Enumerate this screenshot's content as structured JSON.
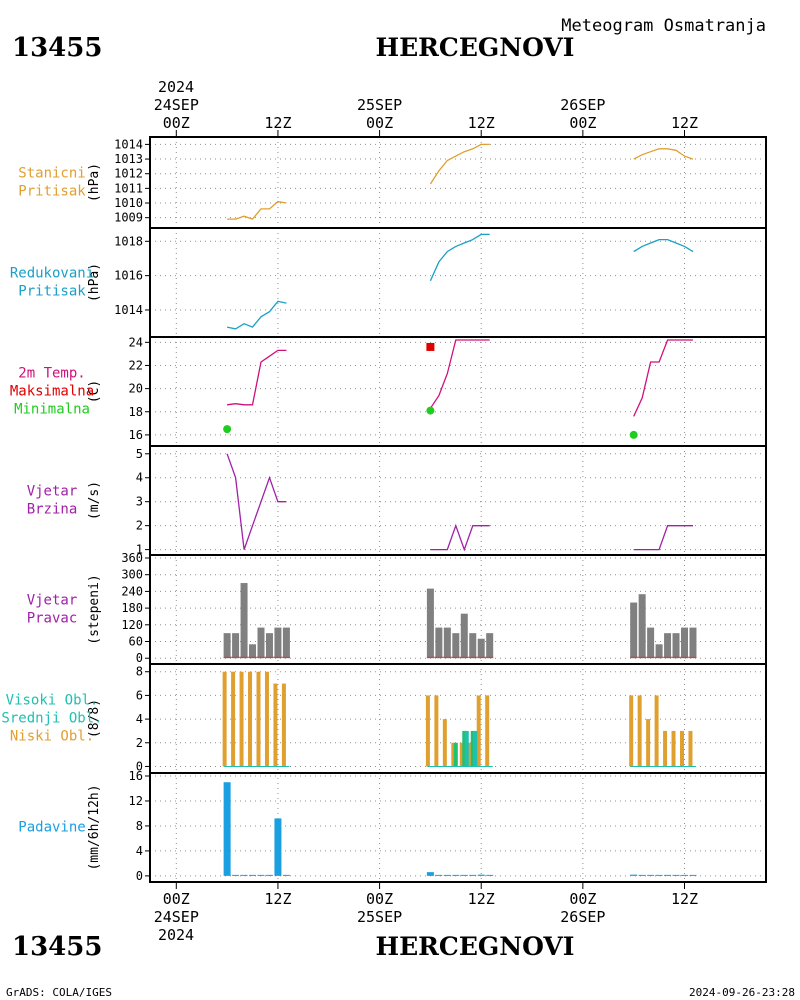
{
  "header": {
    "station_id": "13455",
    "station_name": "HERCEGNOVI",
    "title": "Meteogram Osmatranja"
  },
  "footer": {
    "station_id": "13455",
    "station_name": "HERCEGNOVI",
    "credit": "GrADS: COLA/IGES",
    "timestamp": "2024-09-26-23:28"
  },
  "time_axis": {
    "top_year": "2024",
    "labels": [
      {
        "hour": 0,
        "l1": "24SEP",
        "l2": "00Z"
      },
      {
        "hour": 12,
        "l1": "",
        "l2": "12Z"
      },
      {
        "hour": 24,
        "l1": "25SEP",
        "l2": "00Z"
      },
      {
        "hour": 36,
        "l1": "",
        "l2": "12Z"
      },
      {
        "hour": 48,
        "l1": "26SEP",
        "l2": "00Z"
      },
      {
        "hour": 60,
        "l1": "",
        "l2": "12Z"
      }
    ],
    "bottom_year": "2024"
  },
  "colors": {
    "station_pressure": "#e0a030",
    "reduced_pressure": "#1aa0c8",
    "temp_label": "#d0107c",
    "max_label": "#e00000",
    "min_label": "#20cc20",
    "wind": "#a020a8",
    "direction_bar": "#808080",
    "cloud_high": "#20c0b0",
    "cloud_mid": "#20c070",
    "cloud_low": "#e0a030",
    "precip": "#1aa0e0",
    "grid": "#909090"
  },
  "chart_data": [
    {
      "type": "line",
      "id": "station_pressure",
      "labels": [
        "Stanicni",
        "Pritisak"
      ],
      "ylabel": "(hPa)",
      "ylim": [
        1008.5,
        1014.3
      ],
      "yticks": [
        1009,
        1010,
        1011,
        1012,
        1013,
        1014
      ],
      "segments": [
        {
          "x": [
            6,
            7,
            8,
            9,
            10,
            11,
            12,
            13
          ],
          "y": [
            1008.9,
            1008.9,
            1009.1,
            1008.9,
            1009.6,
            1009.6,
            1010.1,
            1010.0
          ]
        },
        {
          "x": [
            30,
            31,
            32,
            33,
            34,
            35,
            36,
            37
          ],
          "y": [
            1011.3,
            1012.2,
            1012.9,
            1013.2,
            1013.5,
            1013.7,
            1014.0,
            1014.0
          ]
        },
        {
          "x": [
            54,
            55,
            56,
            57,
            58,
            59,
            60,
            61
          ],
          "y": [
            1013.0,
            1013.3,
            1013.5,
            1013.7,
            1013.7,
            1013.6,
            1013.2,
            1013.0
          ]
        }
      ]
    },
    {
      "type": "line",
      "id": "reduced_pressure",
      "labels": [
        "Redukovani",
        "Pritisak"
      ],
      "ylabel": "(hPa)",
      "ylim": [
        1012.6,
        1018.6
      ],
      "yticks": [
        1014,
        1016,
        1018
      ],
      "segments": [
        {
          "x": [
            6,
            7,
            8,
            9,
            10,
            11,
            12,
            13
          ],
          "y": [
            1013.0,
            1012.9,
            1013.2,
            1013.0,
            1013.6,
            1013.9,
            1014.5,
            1014.4
          ]
        },
        {
          "x": [
            30,
            31,
            32,
            33,
            34,
            35,
            36,
            37
          ],
          "y": [
            1015.7,
            1016.8,
            1017.4,
            1017.7,
            1017.9,
            1018.1,
            1018.4,
            1018.4
          ]
        },
        {
          "x": [
            54,
            55,
            56,
            57,
            58,
            59,
            60,
            61
          ],
          "y": [
            1017.4,
            1017.7,
            1017.9,
            1018.1,
            1018.1,
            1017.9,
            1017.7,
            1017.4
          ]
        }
      ]
    },
    {
      "type": "line",
      "id": "temperature",
      "labels": [
        "2m Temp.",
        "Maksimalna",
        "Minimalna"
      ],
      "ylabel": "(C)",
      "ylim": [
        15.3,
        24.2
      ],
      "yticks": [
        16,
        18,
        20,
        22,
        24
      ],
      "segments": [
        {
          "x": [
            6,
            7,
            8,
            9,
            10,
            11,
            12,
            13
          ],
          "y": [
            18.6,
            18.7,
            18.6,
            18.6,
            22.3,
            22.8,
            23.3,
            23.3
          ]
        },
        {
          "x": [
            30,
            31,
            32,
            33,
            34,
            35,
            36,
            37
          ],
          "y": [
            18.3,
            19.4,
            21.3,
            24.3,
            24.5,
            24.5,
            24.2,
            24.2
          ]
        },
        {
          "x": [
            54,
            55,
            56,
            57,
            58,
            59,
            60,
            61
          ],
          "y": [
            17.6,
            19.2,
            22.3,
            22.3,
            24.2,
            24.5,
            24.5,
            24.5
          ]
        }
      ],
      "maximum": [
        {
          "x": 30,
          "y": 23.6
        }
      ],
      "minimum": [
        {
          "x": 6,
          "y": 16.5
        },
        {
          "x": 30,
          "y": 18.1
        },
        {
          "x": 54,
          "y": 16.0
        }
      ]
    },
    {
      "type": "line",
      "id": "wind_speed",
      "labels": [
        "Vjetar",
        "Brzina"
      ],
      "ylabel": "(m/s)",
      "ylim": [
        0.9,
        5.2
      ],
      "yticks": [
        1,
        2,
        3,
        4,
        5
      ],
      "segments": [
        {
          "x": [
            6,
            7,
            8,
            9,
            10,
            11,
            12,
            13
          ],
          "y": [
            5,
            4,
            1,
            2,
            3,
            4,
            3,
            3
          ]
        },
        {
          "x": [
            30,
            31,
            32,
            33,
            34,
            35,
            36,
            37
          ],
          "y": [
            1,
            1,
            1,
            2,
            1,
            2,
            2,
            2
          ]
        },
        {
          "x": [
            54,
            55,
            56,
            57,
            58,
            59,
            60,
            61
          ],
          "y": [
            1,
            1,
            1,
            1,
            2,
            2,
            2,
            2
          ]
        }
      ]
    },
    {
      "type": "bar",
      "id": "wind_direction",
      "labels": [
        "Vjetar",
        "Pravac"
      ],
      "ylabel": "(stepeni)",
      "ylim": [
        -10,
        360
      ],
      "yticks": [
        0,
        60,
        120,
        180,
        240,
        300,
        360
      ],
      "x": [
        6,
        7,
        8,
        9,
        10,
        11,
        12,
        13,
        30,
        31,
        32,
        33,
        34,
        35,
        36,
        37,
        54,
        55,
        56,
        57,
        58,
        59,
        60,
        61
      ],
      "values": [
        90,
        90,
        270,
        50,
        110,
        90,
        110,
        110,
        250,
        110,
        110,
        90,
        160,
        90,
        70,
        90,
        200,
        230,
        110,
        50,
        90,
        90,
        110,
        110
      ]
    },
    {
      "type": "bar",
      "id": "clouds",
      "labels": [
        "Visoki Obl.",
        "Srednji Obl.",
        "Niski Obl."
      ],
      "ylabel": "(8/8)",
      "ylim": [
        -0.3,
        8.4
      ],
      "yticks": [
        0,
        2,
        4,
        6,
        8
      ],
      "x": [
        6,
        7,
        8,
        9,
        10,
        11,
        12,
        13,
        30,
        31,
        32,
        33,
        34,
        35,
        36,
        37,
        54,
        55,
        56,
        57,
        58,
        59,
        60,
        61
      ],
      "series": [
        {
          "name": "Niski Obl.",
          "values": [
            8,
            8,
            8,
            8,
            8,
            8,
            7,
            7,
            6,
            6,
            4,
            2,
            2,
            2,
            6,
            6,
            6,
            6,
            4,
            6,
            3,
            3,
            3,
            3
          ]
        },
        {
          "name": "Srednji Obl.",
          "values": [
            0,
            0,
            0,
            0,
            0,
            0,
            0,
            0,
            0,
            0,
            0,
            2,
            3,
            3,
            0,
            0,
            0,
            0,
            0,
            0,
            0,
            0,
            0,
            0
          ]
        },
        {
          "name": "Visoki Obl.",
          "values": [
            0,
            0,
            0,
            0,
            0,
            0,
            0,
            0,
            0,
            0,
            0,
            0,
            3,
            3,
            0,
            0,
            0,
            0,
            0,
            0,
            0,
            0,
            0,
            0
          ]
        }
      ]
    },
    {
      "type": "bar",
      "id": "precipitation",
      "labels": [
        "Padavine"
      ],
      "ylabel": "(mm/6h/12h)",
      "ylim": [
        -0.5,
        16
      ],
      "yticks": [
        0,
        4,
        8,
        12,
        16
      ],
      "x": [
        6,
        7,
        8,
        9,
        10,
        11,
        12,
        13,
        30,
        31,
        32,
        33,
        34,
        35,
        36,
        37,
        54,
        55,
        56,
        57,
        58,
        59,
        60,
        61
      ],
      "values": [
        15,
        0.1,
        0.1,
        0.1,
        0.1,
        0.1,
        9.2,
        0.1,
        0.6,
        0.1,
        0.1,
        0.1,
        0.1,
        0.1,
        0.2,
        0.1,
        0.2,
        0.1,
        0.1,
        0.1,
        0.1,
        0.1,
        0.1,
        0.1
      ]
    }
  ]
}
